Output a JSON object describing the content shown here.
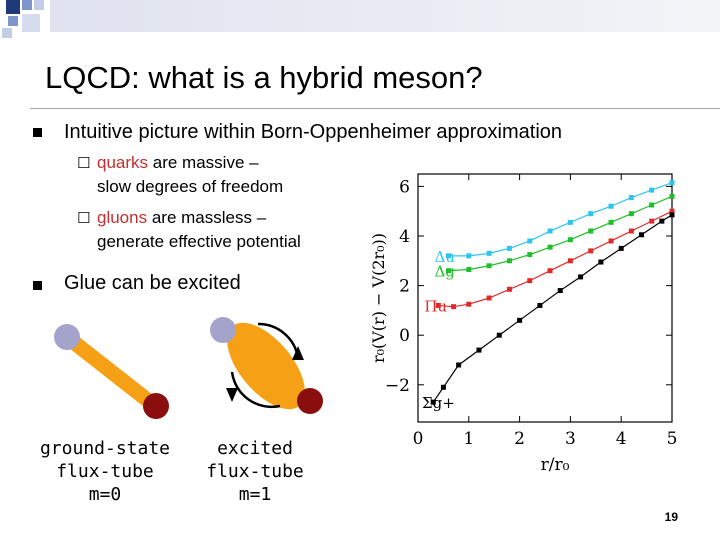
{
  "slide": {
    "title": "LQCD: what is a hybrid meson?",
    "page_number": "19"
  },
  "bullets": [
    {
      "text": "Intuitive picture within Born-Oppenheimer approximation",
      "subbullets": [
        {
          "highlight": "quarks",
          "rest1": " are massive –",
          "line2": "slow degrees of freedom"
        },
        {
          "highlight": "gluons",
          "rest1": " are massless –",
          "line2": "generate effective potential"
        }
      ]
    },
    {
      "text": "Glue can be excited",
      "subbullets": []
    }
  ],
  "illustrations": {
    "ground": {
      "caption": [
        "ground-state",
        "flux-tube",
        "m=0"
      ]
    },
    "excited": {
      "caption": [
        "excited",
        "flux-tube",
        "m=1"
      ]
    }
  },
  "colors": {
    "quark_light": "#a3a3cc",
    "quark_dark": "#8b0e0e",
    "flux": "#f6a115",
    "highlight": "#c0302f",
    "series": {
      "cyan": "#2ec4f0",
      "green": "#1fbf2a",
      "red": "#e02a2a",
      "black": "#000000"
    }
  },
  "chart_data": {
    "type": "scatter",
    "xlabel": "r/r₀",
    "ylabel": "r₀(V(r) − V(2r₀))",
    "xlim": [
      0,
      5
    ],
    "ylim": [
      -3.5,
      6.5
    ],
    "xticks": [
      0,
      1,
      2,
      3,
      4,
      5
    ],
    "yticks": [
      -2,
      0,
      2,
      4,
      6
    ],
    "grid": false,
    "series": [
      {
        "name": "Δu",
        "color_key": "cyan",
        "x": [
          0.6,
          1.0,
          1.4,
          1.8,
          2.2,
          2.6,
          3.0,
          3.4,
          3.8,
          4.2,
          4.6,
          5.0
        ],
        "y": [
          3.2,
          3.2,
          3.3,
          3.5,
          3.8,
          4.2,
          4.55,
          4.9,
          5.2,
          5.55,
          5.85,
          6.15
        ]
      },
      {
        "name": "Δg",
        "color_key": "green",
        "x": [
          0.6,
          1.0,
          1.4,
          1.8,
          2.2,
          2.6,
          3.0,
          3.4,
          3.8,
          4.2,
          4.6,
          5.0
        ],
        "y": [
          2.6,
          2.65,
          2.8,
          3.0,
          3.25,
          3.55,
          3.85,
          4.2,
          4.55,
          4.9,
          5.25,
          5.6
        ]
      },
      {
        "name": "Πu",
        "color_key": "red",
        "x": [
          0.4,
          0.7,
          1.0,
          1.4,
          1.8,
          2.2,
          2.6,
          3.0,
          3.4,
          3.8,
          4.2,
          4.6,
          5.0
        ],
        "y": [
          1.2,
          1.15,
          1.25,
          1.5,
          1.85,
          2.2,
          2.6,
          3.0,
          3.4,
          3.8,
          4.2,
          4.6,
          5.0
        ]
      },
      {
        "name": "Σg+",
        "color_key": "black",
        "x": [
          0.3,
          0.5,
          0.8,
          1.2,
          1.6,
          2.0,
          2.4,
          2.8,
          3.2,
          3.6,
          4.0,
          4.4,
          4.8,
          5.0
        ],
        "y": [
          -2.7,
          -2.1,
          -1.2,
          -0.6,
          0.0,
          0.6,
          1.2,
          1.8,
          2.35,
          2.95,
          3.5,
          4.05,
          4.6,
          4.85
        ]
      }
    ]
  }
}
